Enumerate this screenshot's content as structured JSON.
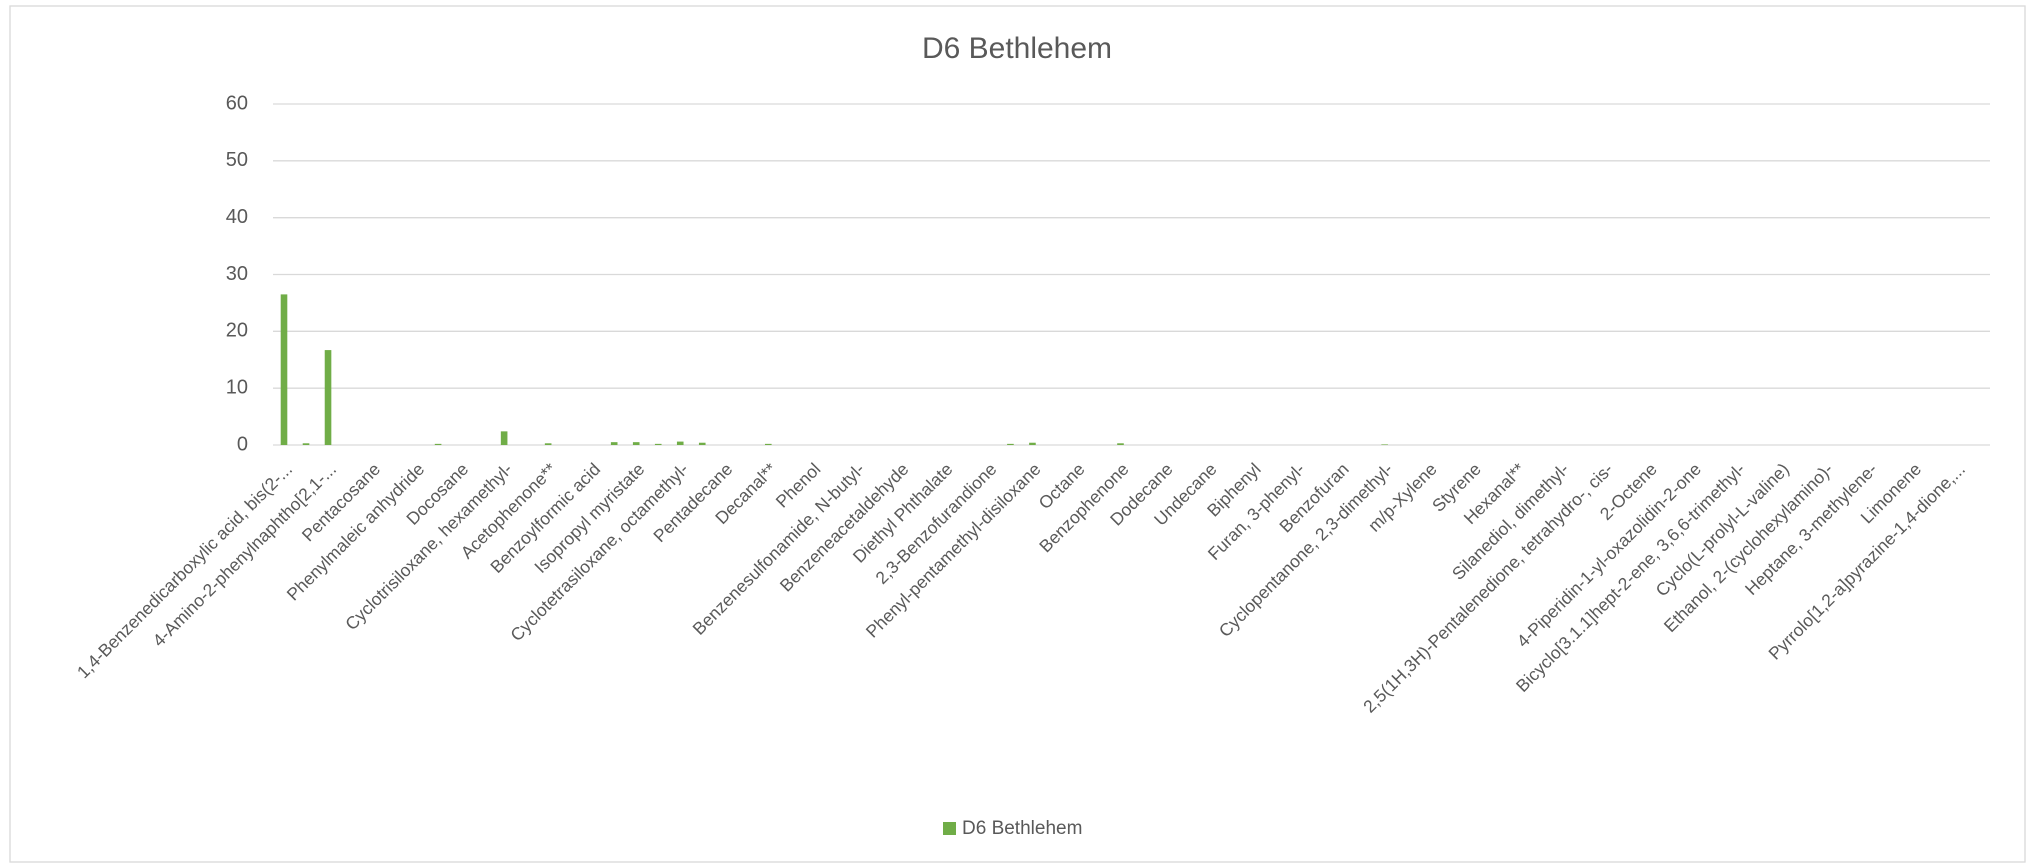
{
  "chart_data": {
    "type": "bar",
    "title": "D6 Bethlehem",
    "categories": [
      "1,4-Benzenedicarboxylic acid, bis(2-...",
      null,
      "4-Amino-2-phenylnaphtho[2,1-...",
      null,
      "Pentacosane",
      null,
      "Phenylmaleic anhydride",
      null,
      "Docosane",
      null,
      "Cyclotrisiloxane, hexamethyl-",
      null,
      "Acetophenone**",
      null,
      "Benzoylformic acid",
      null,
      "Isopropyl myristate",
      null,
      "Cyclotetrasiloxane, octamethyl-",
      null,
      "Pentadecane",
      null,
      "Decanal**",
      null,
      "Phenol",
      null,
      "Benzenesulfonamide, N-butyl-",
      null,
      "Benzeneacetaldehyde",
      null,
      "Diethyl Phthalate",
      null,
      "2,3-Benzofurandione",
      null,
      "Phenyl-pentamethyl-disiloxane",
      null,
      "Octane",
      null,
      "Benzophenone",
      null,
      "Dodecane",
      null,
      "Undecane",
      null,
      "Biphenyl",
      null,
      "Furan, 3-phenyl-",
      null,
      "Benzofuran",
      null,
      "Cyclopentanone, 2,3-dimethyl-",
      null,
      "m/p-Xylene",
      null,
      "Styrene",
      null,
      "Hexanal**",
      null,
      "Silanediol, dimethyl-",
      null,
      "2,5(1H,3H)-Pentalenedione, tetrahydro-, cis-",
      null,
      "2-Octene",
      null,
      "4-Piperidin-1-yl-oxazolidin-2-one",
      null,
      "Bicyclo[3.1.1]hept-2-ene, 3,6,6-trimethyl-",
      null,
      "Cyclo(L-prolyl-L-valine)",
      null,
      "Ethanol, 2-(cyclohexylamino)-",
      null,
      "Heptane, 3-methylene-",
      null,
      "Limonene",
      null,
      "Pyrrolo[1,2-a]pyrazine-1,4-dione,...",
      null
    ],
    "series": [
      {
        "name": "D6 Bethlehem",
        "color": "#70ad47",
        "values": [
          26.5,
          0.3,
          16.7,
          0,
          0,
          0,
          0,
          0.2,
          0,
          0,
          2.4,
          0,
          0.3,
          0,
          0,
          0.5,
          0.5,
          0.2,
          0.6,
          0.4,
          0,
          0,
          0.2,
          0,
          0,
          0,
          0,
          0,
          0,
          0,
          0,
          0,
          0,
          0.2,
          0.4,
          0,
          0,
          0,
          0.3,
          0,
          0,
          0,
          0,
          0,
          0,
          0,
          0,
          0,
          0,
          0,
          0.1,
          0,
          0,
          0,
          0,
          0,
          0,
          0,
          0,
          0,
          0,
          0,
          0,
          0,
          0,
          0,
          0,
          0,
          0,
          0,
          0,
          0,
          0,
          0,
          0,
          0,
          0,
          0
        ]
      }
    ],
    "ylim": [
      0,
      60
    ],
    "yticks": [
      0,
      10,
      20,
      30,
      40,
      50,
      60
    ],
    "grid": true,
    "legend": "bottom"
  }
}
